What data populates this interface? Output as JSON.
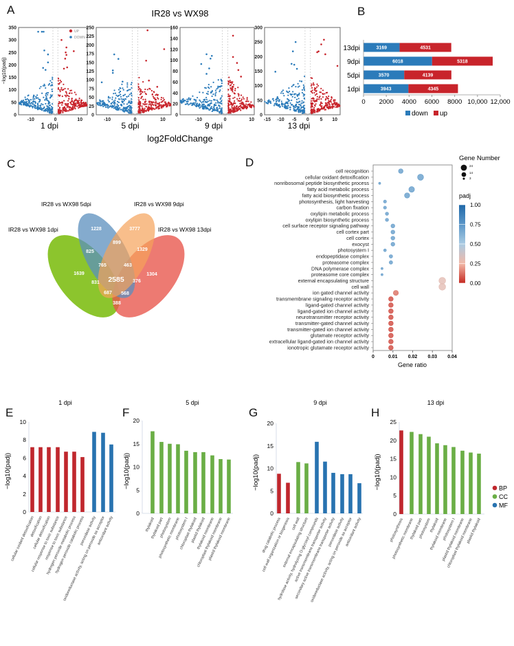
{
  "panel_labels": {
    "A": "A",
    "B": "B",
    "C": "C",
    "D": "D",
    "E": "E",
    "F": "F",
    "G": "G",
    "H": "H"
  },
  "colors": {
    "up": "#c8242b",
    "down": "#2b7bba",
    "ns": "#b5b5b5",
    "BP": "#c0272d",
    "CC": "#6aae45",
    "MF": "#2873b0"
  },
  "chart_data": [
    {
      "panel": "A",
      "type": "scatter",
      "title": "IR28 vs WX98",
      "xlabel": "log2FoldChange",
      "ylabel": "−log10(padj)",
      "legend": [
        "UP",
        "DOWN"
      ],
      "legend_placement": "top-right of first subplot",
      "subplots": [
        {
          "label": "1 dpi",
          "xlim": [
            -15,
            13
          ],
          "ylim": [
            0,
            350
          ],
          "xticks": [
            -10,
            0,
            10
          ],
          "yticks": [
            0,
            50,
            100,
            150,
            200,
            250,
            300,
            350
          ],
          "outliers_up": [
            [
              2.5,
              300
            ],
            [
              4.5,
              270
            ],
            [
              7.5,
              255
            ],
            [
              4.2,
              250
            ],
            [
              4.5,
              240
            ],
            [
              4,
              225
            ],
            [
              4.8,
              190
            ],
            [
              3.5,
              185
            ]
          ],
          "outliers_down": [
            [
              -7,
              333
            ],
            [
              -5.5,
              333
            ],
            [
              -4.8,
              333
            ],
            [
              -4.5,
              258
            ],
            [
              -3,
              242
            ],
            [
              -3,
              210
            ],
            [
              -5,
              188
            ],
            [
              -4,
              180
            ]
          ]
        },
        {
          "label": "5 dpi",
          "xlim": [
            -14,
            13
          ],
          "ylim": [
            0,
            250
          ],
          "xticks": [
            -10,
            0,
            10
          ],
          "yticks": [
            0,
            25,
            50,
            75,
            100,
            125,
            150,
            175,
            200,
            225,
            250
          ],
          "outliers_up": [
            [
              4.5,
              242
            ],
            [
              10.5,
              188
            ],
            [
              4,
              155
            ],
            [
              8,
              80
            ],
            [
              5,
              98
            ]
          ],
          "outliers_down": [
            [
              -7.5,
              173
            ],
            [
              -6,
              160
            ],
            [
              -8,
              127
            ],
            [
              -8,
              120
            ],
            [
              -12,
              93
            ],
            [
              -4.5,
              95
            ]
          ]
        },
        {
          "label": "9 dpi",
          "xlim": [
            -17,
            11
          ],
          "ylim": [
            0,
            160
          ],
          "xticks": [
            -10,
            0,
            10
          ],
          "yticks": [
            0,
            20,
            40,
            60,
            80,
            100,
            120,
            140,
            160
          ],
          "outliers_up": [
            [
              3,
              145
            ],
            [
              3,
              106
            ],
            [
              4.5,
              95
            ],
            [
              5,
              82
            ],
            [
              6,
              70
            ]
          ],
          "outliers_down": [
            [
              -7,
              111
            ],
            [
              -5,
              108
            ],
            [
              -5.5,
              103
            ],
            [
              -9,
              93
            ],
            [
              -6,
              85
            ],
            [
              -7,
              75
            ]
          ]
        },
        {
          "label": "13 dpi",
          "xlim": [
            -16,
            12
          ],
          "ylim": [
            0,
            300
          ],
          "xticks": [
            -15,
            -10,
            -5,
            0,
            5,
            10
          ],
          "yticks": [
            0,
            50,
            100,
            150,
            200,
            250,
            300
          ],
          "outliers_up": [
            [
              6,
              258
            ],
            [
              5,
              242
            ],
            [
              4,
              218
            ],
            [
              6.5,
              208
            ],
            [
              11,
              168
            ],
            [
              3.5,
              215
            ]
          ],
          "outliers_down": [
            [
              -4.5,
              250
            ],
            [
              -5.5,
              218
            ],
            [
              -12,
              148
            ],
            [
              -5,
              172
            ],
            [
              -6,
              175
            ],
            [
              -4,
              158
            ]
          ]
        }
      ]
    },
    {
      "panel": "B",
      "type": "bar",
      "orientation": "horizontal-stacked",
      "categories": [
        "13dpi",
        "9dpi",
        "5dpi",
        "1dpi"
      ],
      "series": [
        {
          "name": "down",
          "values": [
            3169,
            6018,
            3570,
            3943
          ]
        },
        {
          "name": "up",
          "values": [
            4531,
            5318,
            4139,
            4345
          ]
        }
      ],
      "xlim": [
        0,
        12000
      ],
      "xticks": [
        "0",
        "2000",
        "4000",
        "6000",
        "8000",
        "10,000",
        "12,000"
      ],
      "legend_placement": "bottom"
    },
    {
      "panel": "C",
      "type": "venn",
      "sets": [
        "IR28 vs WX98 1dpi",
        "IR28 vs WX98 5dpi",
        "IR28 vs WX98 9dpi",
        "IR28 vs WX98 13dpi"
      ],
      "regions": {
        "5dpi_only": "1228",
        "9dpi_only": "3777",
        "5_9": "899",
        "1_5": "825",
        "9_13": "1329",
        "1_5_9": "765",
        "5_9_13": "463",
        "1dpi_only": "1639",
        "13dpi_only": "1304",
        "all": "2585",
        "1_9": "831",
        "5_13": "376",
        "1_9_13": "687",
        "1_5_13": "568",
        "1_13": "388"
      }
    },
    {
      "panel": "D",
      "type": "scatter",
      "xlabel": "Gene ratio",
      "xlim": [
        0,
        0.04
      ],
      "xticks": [
        "0",
        "0.01",
        "0.02",
        "0.03",
        "0.04"
      ],
      "size_legend": {
        "title": "Gene Number",
        "values": [
          "24",
          "14",
          "3"
        ]
      },
      "color_legend": {
        "title": "padj",
        "ticks": [
          "1.00",
          "0.75",
          "0.50",
          "0.25",
          "0.00"
        ]
      },
      "terms": [
        {
          "name": "cell recognition",
          "ratio": 0.014,
          "count": 14,
          "padj": 0.72
        },
        {
          "name": "cellular oxidant detoxification",
          "ratio": 0.024,
          "count": 24,
          "padj": 0.72
        },
        {
          "name": "nonribosomal peptide biosynthetic process",
          "ratio": 0.0033,
          "count": 3,
          "padj": 0.72
        },
        {
          "name": "fatty acid metabolic process",
          "ratio": 0.0195,
          "count": 21,
          "padj": 0.72
        },
        {
          "name": "fatty acid biosynthetic process",
          "ratio": 0.0172,
          "count": 18,
          "padj": 0.72
        },
        {
          "name": "photosynthesis, light harvesting",
          "ratio": 0.006,
          "count": 6,
          "padj": 0.72
        },
        {
          "name": "carbon fixation",
          "ratio": 0.006,
          "count": 6,
          "padj": 0.72
        },
        {
          "name": "oxylipin metabolic process",
          "ratio": 0.007,
          "count": 7,
          "padj": 0.72
        },
        {
          "name": "oxylipin biosynthetic process",
          "ratio": 0.007,
          "count": 7,
          "padj": 0.72
        },
        {
          "name": "cell surface receptor signaling pathway",
          "ratio": 0.01,
          "count": 10,
          "padj": 0.72
        },
        {
          "name": "cell cortex part",
          "ratio": 0.01,
          "count": 10,
          "padj": 0.72
        },
        {
          "name": "cell cortex",
          "ratio": 0.01,
          "count": 10,
          "padj": 0.72
        },
        {
          "name": "exocyst",
          "ratio": 0.01,
          "count": 10,
          "padj": 0.72
        },
        {
          "name": "photosystem I",
          "ratio": 0.006,
          "count": 5,
          "padj": 0.72
        },
        {
          "name": "endopeptidase complex",
          "ratio": 0.009,
          "count": 8,
          "padj": 0.72
        },
        {
          "name": "proteasome complex",
          "ratio": 0.009,
          "count": 8,
          "padj": 0.72
        },
        {
          "name": "DNA polymerase complex",
          "ratio": 0.0045,
          "count": 3,
          "padj": 0.72
        },
        {
          "name": "proteasome core complex",
          "ratio": 0.0045,
          "count": 3,
          "padj": 0.72
        },
        {
          "name": "external encapsulating structure",
          "ratio": 0.035,
          "count": 30,
          "padj": 0.3
        },
        {
          "name": "cell wall",
          "ratio": 0.035,
          "count": 30,
          "padj": 0.3
        },
        {
          "name": "ion  gated channel activity",
          "ratio": 0.0115,
          "count": 17,
          "padj": 0.12
        },
        {
          "name": "transmembrane signaling receptor activity",
          "ratio": 0.009,
          "count": 14,
          "padj": 0.05
        },
        {
          "name": "ligand-gated channel activity",
          "ratio": 0.009,
          "count": 14,
          "padj": 0.05
        },
        {
          "name": "ligand-gated ion channel activity",
          "ratio": 0.009,
          "count": 14,
          "padj": 0.05
        },
        {
          "name": "neurotransmitter receptor activity",
          "ratio": 0.009,
          "count": 14,
          "padj": 0.05
        },
        {
          "name": "transmitter-gated channel activity",
          "ratio": 0.009,
          "count": 14,
          "padj": 0.05
        },
        {
          "name": "transmitter-gated ion channel activity",
          "ratio": 0.009,
          "count": 14,
          "padj": 0.05
        },
        {
          "name": "glutamate receptor activity",
          "ratio": 0.009,
          "count": 14,
          "padj": 0.05
        },
        {
          "name": "extracellular ligand-gated ion channel activity",
          "ratio": 0.009,
          "count": 14,
          "padj": 0.05
        },
        {
          "name": "ionotropic glutamate receptor activity",
          "ratio": 0.009,
          "count": 14,
          "padj": 0.05
        }
      ]
    },
    {
      "panel": "E",
      "type": "bar",
      "title": "1 dpi",
      "ylabel": "−log10(padj)",
      "ylim": [
        0,
        10
      ],
      "yticks": [
        "0",
        "2",
        "4",
        "6",
        "8",
        "10"
      ],
      "categories": [
        "cellular oxidant detoxification",
        "detoxification",
        "cellular detoxification",
        "cellular response to toxic substance",
        "response to toxic substance",
        "hydrogen peroxide metabolic process",
        "hydrogen peroxide catabolic process",
        "peroxidase activity",
        "oxidoreductase activity, acting on peroxide as acceptor",
        "antioxidant activity"
      ],
      "values": [
        7.2,
        7.2,
        7.2,
        7.2,
        6.7,
        6.7,
        6.1,
        8.9,
        8.8,
        7.5
      ],
      "groups": [
        "BP",
        "BP",
        "BP",
        "BP",
        "BP",
        "BP",
        "BP",
        "MF",
        "MF",
        "MF"
      ]
    },
    {
      "panel": "F",
      "type": "bar",
      "title": "5 dpi",
      "ylabel": "−log10(padj)",
      "ylim": [
        0,
        20
      ],
      "yticks": [
        "0",
        "5",
        "10",
        "15",
        "20"
      ],
      "categories": [
        "thylakoid",
        "thylakoid part",
        "photosystem",
        "photosynthetic membrane",
        "photosystem I",
        "chloroplast thylakoid",
        "plastid thylakoid",
        "thylakoid membrane",
        "chloroplast thylakoid membrane",
        "plastid thylakoid membrane"
      ],
      "values": [
        17.7,
        15.4,
        15.0,
        14.9,
        13.5,
        13.2,
        13.2,
        12.5,
        11.7,
        11.6
      ],
      "groups": [
        "CC",
        "CC",
        "CC",
        "CC",
        "CC",
        "CC",
        "CC",
        "CC",
        "CC",
        "CC"
      ]
    },
    {
      "panel": "G",
      "type": "bar",
      "title": "9 dpi",
      "ylabel": "−log10(padj)",
      "ylim": [
        0,
        20
      ],
      "yticks": [
        "0",
        "5",
        "10",
        "15",
        "20"
      ],
      "categories": [
        "drug catabolic process",
        "cell wall organization or biogenesis",
        "cell wall",
        "external encapsulating structure",
        "hydrolase activity, hydrolyzing O-glycosyl compounds",
        "active transmembrane transporter activity",
        "secondary active transmembrane transporter activity",
        "peroxidase activity",
        "oxidoreductase activity, acting on peroxide as acceptor",
        "antioxidant activity"
      ],
      "values": [
        8.8,
        6.8,
        11.4,
        11.1,
        15.9,
        11.5,
        9.0,
        8.7,
        8.7,
        6.7
      ],
      "groups": [
        "BP",
        "BP",
        "CC",
        "CC",
        "MF",
        "MF",
        "MF",
        "MF",
        "MF",
        "MF"
      ]
    },
    {
      "panel": "H",
      "type": "bar",
      "title": "13 dpi",
      "ylabel": "−log10(padj)",
      "ylim": [
        0,
        25
      ],
      "yticks": [
        "0",
        "5",
        "10",
        "15",
        "20",
        "25"
      ],
      "categories": [
        "photosynthesis",
        "photosynthetic membrane",
        "thylakoid part",
        "photosystem",
        "thylakoid",
        "thylakoid membrane",
        "photosystem I",
        "plastid thylakoid membrane",
        "chloroplast thylakoid membrane",
        "plastid thylakoid"
      ],
      "values": [
        22.7,
        22.3,
        21.7,
        21.0,
        19.2,
        18.7,
        18.2,
        17.2,
        16.7,
        16.4
      ],
      "groups": [
        "BP",
        "CC",
        "CC",
        "CC",
        "CC",
        "CC",
        "CC",
        "CC",
        "CC",
        "CC"
      ],
      "legend": [
        "BP",
        "CC",
        "MF"
      ],
      "legend_placement": "right"
    }
  ]
}
